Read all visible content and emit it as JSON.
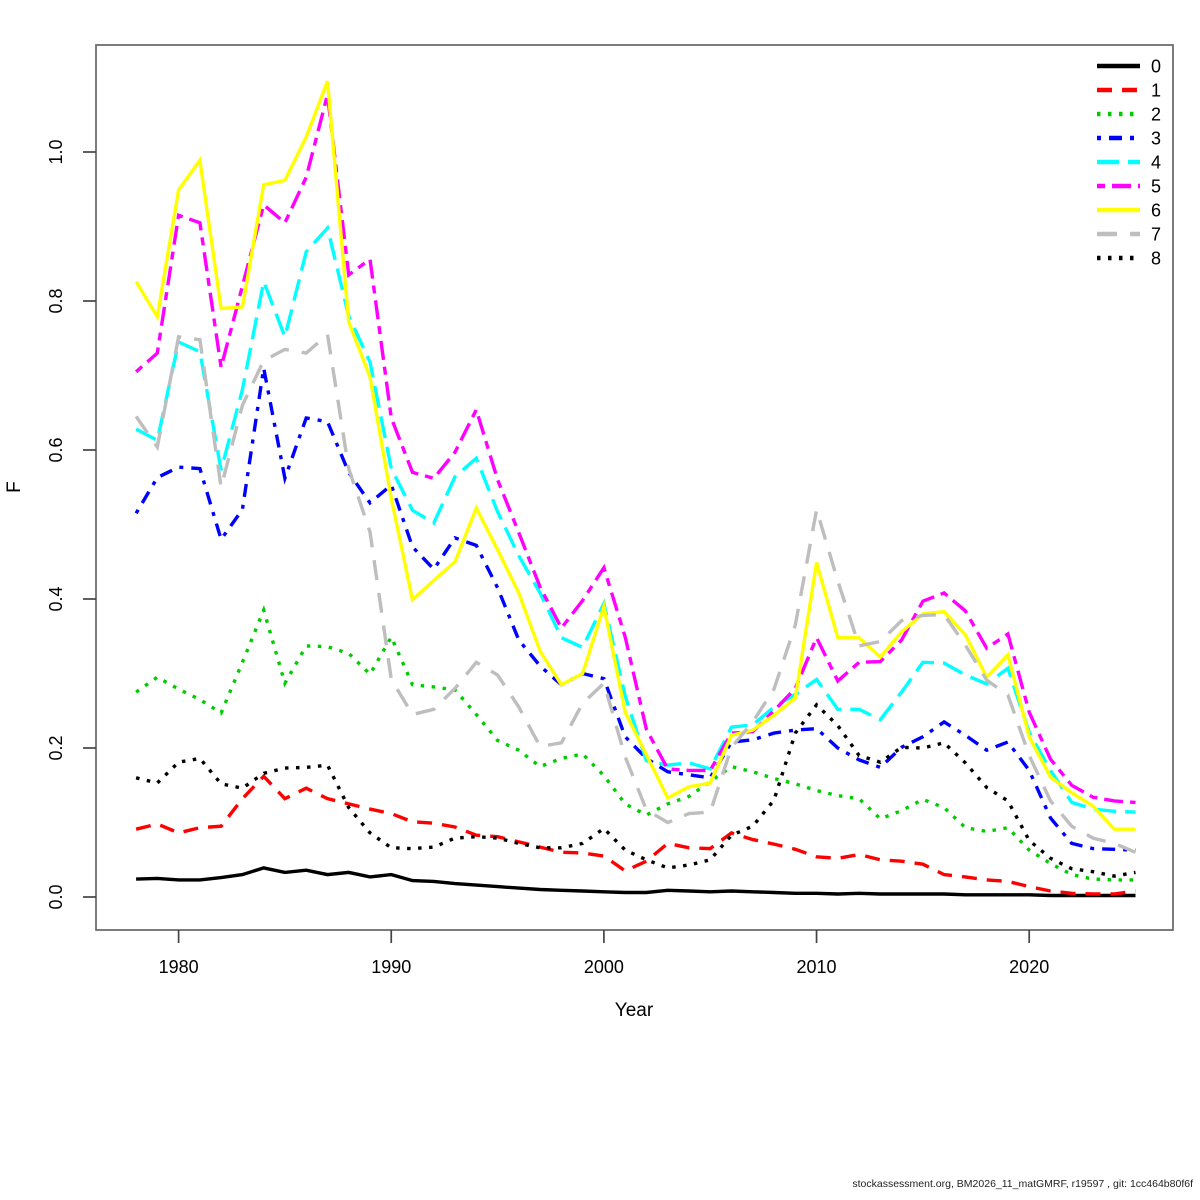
{
  "footer": "stockassessment.org, BM2026_11_matGMRF, r19597 , git: 1cc464b80f6f",
  "chart_data": {
    "type": "line",
    "title": "",
    "xlabel": "Year",
    "ylabel": "F",
    "grid": false,
    "legend_position": "top-right",
    "xlim": [
      1978,
      2025
    ],
    "ylim": [
      0.0,
      1.1
    ],
    "x_ticks": [
      "1980",
      "1990",
      "2000",
      "2010",
      "2020"
    ],
    "x_tick_values": [
      1980,
      1990,
      2000,
      2010,
      2020
    ],
    "y_ticks": [
      "0.0",
      "0.2",
      "0.4",
      "0.6",
      "0.8",
      "1.0"
    ],
    "y_tick_values": [
      0.0,
      0.2,
      0.4,
      0.6,
      0.8,
      1.0
    ],
    "x": [
      1978,
      1979,
      1980,
      1981,
      1982,
      1983,
      1984,
      1985,
      1986,
      1987,
      1988,
      1989,
      1990,
      1991,
      1992,
      1993,
      1994,
      1995,
      1996,
      1997,
      1998,
      1999,
      2000,
      2001,
      2002,
      2003,
      2004,
      2005,
      2006,
      2007,
      2008,
      2009,
      2010,
      2011,
      2012,
      2013,
      2014,
      2015,
      2016,
      2017,
      2018,
      2019,
      2020,
      2021,
      2022,
      2023,
      2024,
      2025
    ],
    "series": [
      {
        "name": "0",
        "color": "#000000",
        "dash": "",
        "values": [
          0.024,
          0.025,
          0.023,
          0.023,
          0.026,
          0.03,
          0.039,
          0.033,
          0.036,
          0.03,
          0.033,
          0.027,
          0.03,
          0.022,
          0.021,
          0.018,
          0.016,
          0.014,
          0.012,
          0.01,
          0.009,
          0.008,
          0.007,
          0.006,
          0.006,
          0.009,
          0.008,
          0.007,
          0.008,
          0.007,
          0.006,
          0.005,
          0.005,
          0.004,
          0.005,
          0.004,
          0.004,
          0.004,
          0.004,
          0.003,
          0.003,
          0.003,
          0.003,
          0.002,
          0.002,
          0.002,
          0.002,
          0.002
        ]
      },
      {
        "name": "1",
        "color": "#ff0000",
        "dash": "15,10",
        "values": [
          0.091,
          0.098,
          0.086,
          0.093,
          0.095,
          0.132,
          0.162,
          0.132,
          0.146,
          0.132,
          0.125,
          0.118,
          0.112,
          0.101,
          0.099,
          0.094,
          0.083,
          0.081,
          0.074,
          0.067,
          0.06,
          0.059,
          0.055,
          0.035,
          0.048,
          0.072,
          0.066,
          0.065,
          0.086,
          0.077,
          0.071,
          0.064,
          0.054,
          0.052,
          0.057,
          0.05,
          0.048,
          0.044,
          0.03,
          0.027,
          0.023,
          0.021,
          0.014,
          0.008,
          0.005,
          0.004,
          0.004,
          0.008
        ]
      },
      {
        "name": "2",
        "color": "#00cd00",
        "dash": "3.5,7.5",
        "values": [
          0.275,
          0.295,
          0.279,
          0.265,
          0.247,
          0.315,
          0.385,
          0.287,
          0.337,
          0.336,
          0.327,
          0.299,
          0.349,
          0.285,
          0.282,
          0.278,
          0.245,
          0.21,
          0.197,
          0.175,
          0.186,
          0.192,
          0.163,
          0.125,
          0.11,
          0.125,
          0.135,
          0.155,
          0.175,
          0.168,
          0.159,
          0.152,
          0.143,
          0.136,
          0.132,
          0.105,
          0.116,
          0.131,
          0.12,
          0.093,
          0.088,
          0.093,
          0.063,
          0.045,
          0.03,
          0.024,
          0.023,
          0.023
        ]
      },
      {
        "name": "3",
        "color": "#0000ff",
        "dash": "4,8,13,8",
        "values": [
          0.515,
          0.563,
          0.577,
          0.575,
          0.48,
          0.52,
          0.71,
          0.562,
          0.643,
          0.638,
          0.57,
          0.529,
          0.553,
          0.47,
          0.44,
          0.482,
          0.472,
          0.415,
          0.345,
          0.31,
          0.285,
          0.3,
          0.293,
          0.215,
          0.186,
          0.168,
          0.164,
          0.16,
          0.208,
          0.211,
          0.22,
          0.224,
          0.226,
          0.2,
          0.184,
          0.174,
          0.201,
          0.215,
          0.235,
          0.217,
          0.197,
          0.208,
          0.17,
          0.106,
          0.072,
          0.065,
          0.064,
          0.063
        ]
      },
      {
        "name": "4",
        "color": "#00ffff",
        "dash": "22,9",
        "values": [
          0.628,
          0.613,
          0.745,
          0.732,
          0.573,
          0.681,
          0.826,
          0.752,
          0.866,
          0.898,
          0.78,
          0.718,
          0.575,
          0.519,
          0.502,
          0.564,
          0.589,
          0.517,
          0.458,
          0.408,
          0.348,
          0.335,
          0.394,
          0.27,
          0.183,
          0.177,
          0.18,
          0.172,
          0.228,
          0.231,
          0.255,
          0.272,
          0.292,
          0.252,
          0.252,
          0.238,
          0.275,
          0.315,
          0.314,
          0.298,
          0.286,
          0.307,
          0.221,
          0.17,
          0.127,
          0.118,
          0.115,
          0.114
        ]
      },
      {
        "name": "5",
        "color": "#ff00ff",
        "dash": "8,7,19,7",
        "values": [
          0.705,
          0.73,
          0.915,
          0.905,
          0.711,
          0.82,
          0.929,
          0.905,
          0.966,
          1.077,
          0.835,
          0.856,
          0.643,
          0.57,
          0.562,
          0.597,
          0.654,
          0.56,
          0.489,
          0.416,
          0.361,
          0.398,
          0.442,
          0.349,
          0.225,
          0.172,
          0.17,
          0.17,
          0.22,
          0.222,
          0.25,
          0.28,
          0.348,
          0.29,
          0.315,
          0.316,
          0.345,
          0.397,
          0.408,
          0.384,
          0.334,
          0.353,
          0.248,
          0.185,
          0.15,
          0.134,
          0.129,
          0.127
        ]
      },
      {
        "name": "6",
        "color": "#ffff00",
        "dash": "",
        "values": [
          0.826,
          0.779,
          0.949,
          0.989,
          0.79,
          0.792,
          0.956,
          0.962,
          1.02,
          1.095,
          0.772,
          0.698,
          0.535,
          0.399,
          0.425,
          0.45,
          0.522,
          0.466,
          0.408,
          0.33,
          0.285,
          0.3,
          0.39,
          0.248,
          0.191,
          0.133,
          0.148,
          0.153,
          0.217,
          0.224,
          0.244,
          0.267,
          0.449,
          0.348,
          0.348,
          0.322,
          0.356,
          0.38,
          0.383,
          0.352,
          0.295,
          0.325,
          0.215,
          0.161,
          0.14,
          0.122,
          0.091,
          0.091
        ]
      },
      {
        "name": "7",
        "color": "#bebebe",
        "dash": "20,13",
        "values": [
          0.645,
          0.604,
          0.752,
          0.748,
          0.55,
          0.66,
          0.72,
          0.735,
          0.73,
          0.755,
          0.575,
          0.49,
          0.292,
          0.245,
          0.252,
          0.28,
          0.315,
          0.298,
          0.255,
          0.202,
          0.207,
          0.26,
          0.287,
          0.188,
          0.117,
          0.1,
          0.112,
          0.114,
          0.201,
          0.235,
          0.279,
          0.365,
          0.52,
          0.424,
          0.337,
          0.343,
          0.371,
          0.378,
          0.379,
          0.338,
          0.291,
          0.271,
          0.19,
          0.129,
          0.095,
          0.079,
          0.072,
          0.06
        ]
      },
      {
        "name": "8",
        "color": "#000000",
        "dash": "3.5,7.5",
        "values": [
          0.16,
          0.153,
          0.181,
          0.186,
          0.152,
          0.146,
          0.166,
          0.173,
          0.174,
          0.177,
          0.12,
          0.086,
          0.066,
          0.065,
          0.067,
          0.079,
          0.081,
          0.079,
          0.072,
          0.066,
          0.066,
          0.072,
          0.092,
          0.063,
          0.05,
          0.039,
          0.043,
          0.05,
          0.083,
          0.095,
          0.13,
          0.22,
          0.258,
          0.23,
          0.19,
          0.181,
          0.201,
          0.2,
          0.207,
          0.18,
          0.147,
          0.129,
          0.076,
          0.052,
          0.038,
          0.034,
          0.028,
          0.033
        ]
      }
    ]
  }
}
